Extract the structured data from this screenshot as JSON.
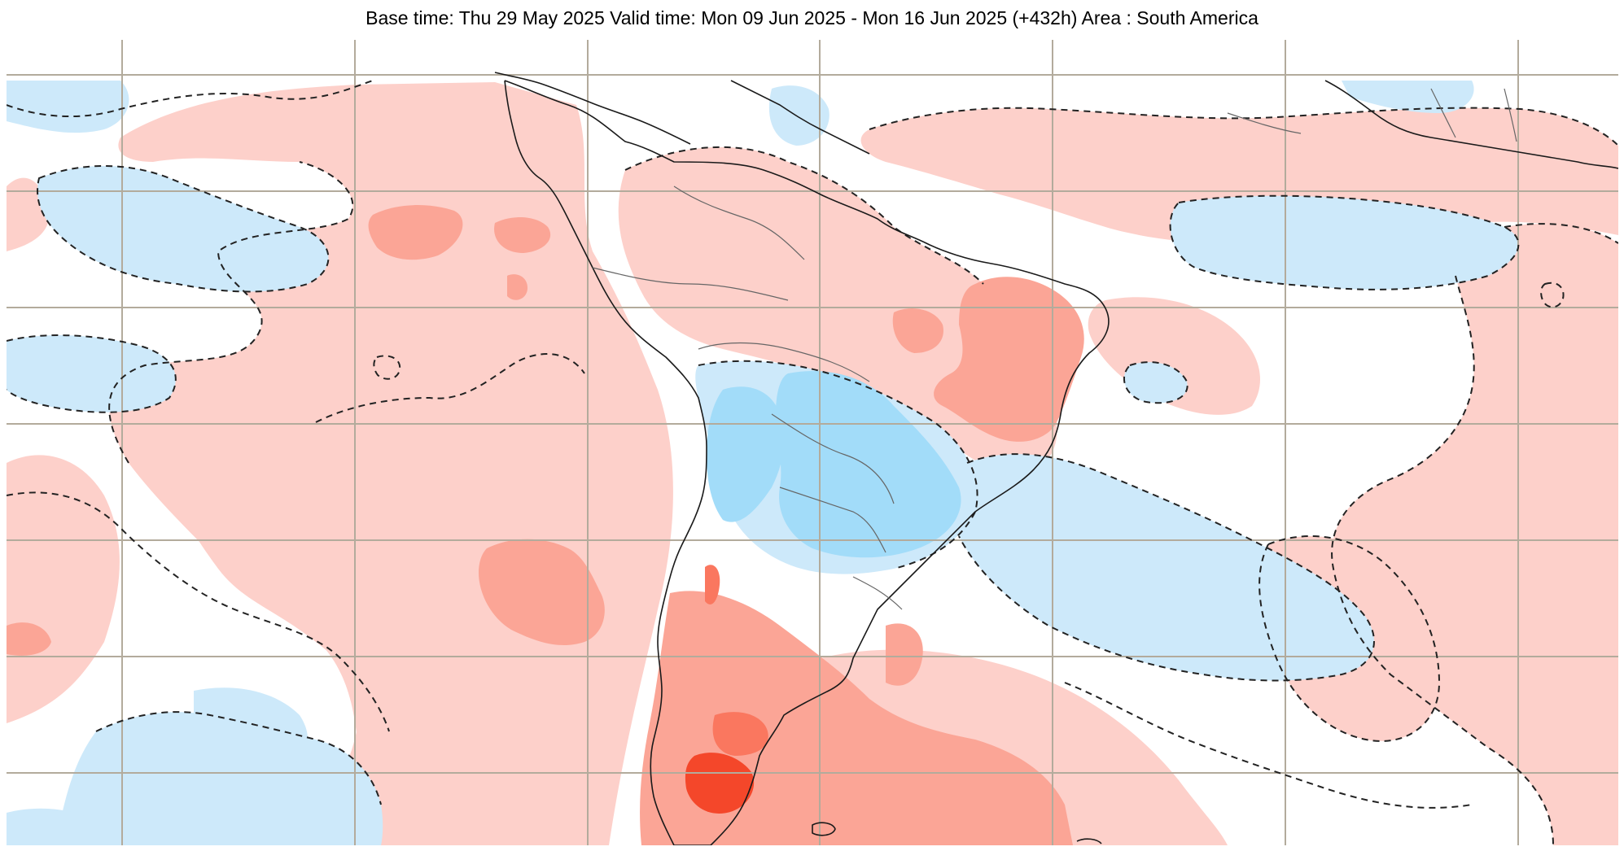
{
  "title": "Base time: Thu 29 May 2025 Valid time: Mon 09 Jun 2025 - Mon 16 Jun 2025 (+432h) Area : South America",
  "map": {
    "area": "South America",
    "base_time": "Thu 29 May 2025",
    "valid_time_start": "Mon 09 Jun 2025",
    "valid_time_end": "Mon 16 Jun 2025",
    "lead_time": "+432h",
    "colors": {
      "background": "#ffffff",
      "warm_light": "#fdd0ca",
      "warm_medium": "#fba596",
      "warm_strong": "#fa775f",
      "warm_extreme": "#f4472a",
      "cool_light": "#cde9fa",
      "cool_medium": "#a2dcf9",
      "gridline": "#b3ab9c",
      "coastline": "#1a1a1a",
      "border": "#666666",
      "contour": "#222222"
    },
    "contour_style": "dashed"
  }
}
